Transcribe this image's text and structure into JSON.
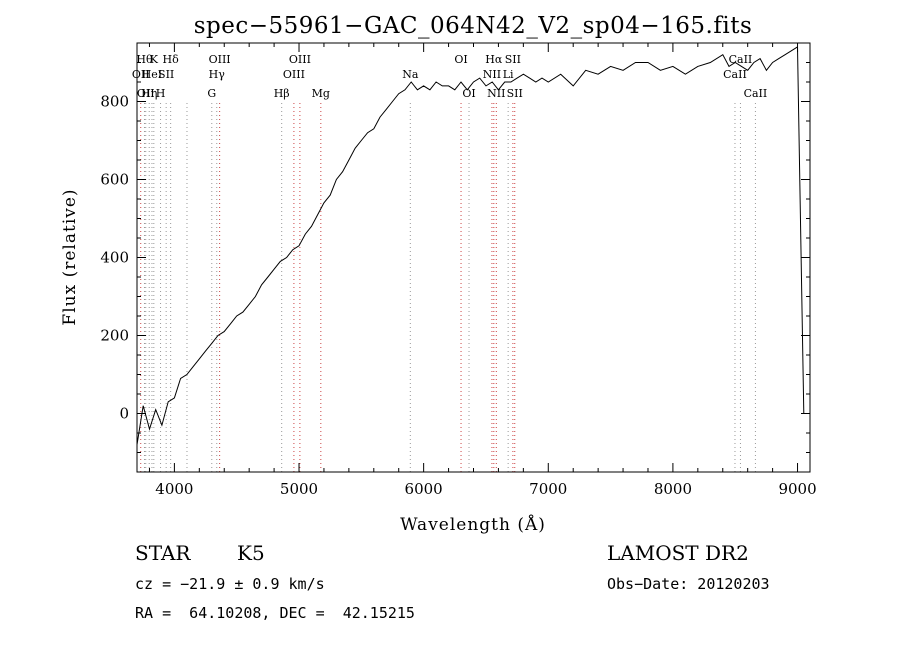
{
  "chart_data": {
    "type": "line",
    "title": "spec−55961−GAC_064N42_V2_sp04−165.fits",
    "xlabel": "Wavelength (Å)",
    "ylabel": "Flux (relative)",
    "xlim": [
      3700,
      9100
    ],
    "ylim": [
      -150,
      950
    ],
    "xticks": [
      4000,
      5000,
      6000,
      7000,
      8000,
      9000
    ],
    "yticks": [
      0,
      200,
      400,
      600,
      800
    ],
    "series": [
      {
        "name": "",
        "x": [
          3700,
          3750,
          3800,
          3850,
          3900,
          3950,
          4000,
          4050,
          4100,
          4150,
          4200,
          4250,
          4300,
          4350,
          4400,
          4450,
          4500,
          4550,
          4600,
          4650,
          4700,
          4750,
          4800,
          4850,
          4900,
          4950,
          5000,
          5050,
          5100,
          5150,
          5200,
          5250,
          5300,
          5350,
          5400,
          5450,
          5500,
          5550,
          5600,
          5650,
          5700,
          5750,
          5800,
          5850,
          5900,
          5950,
          6000,
          6050,
          6100,
          6150,
          6200,
          6250,
          6300,
          6350,
          6400,
          6450,
          6500,
          6550,
          6600,
          6650,
          6700,
          6750,
          6800,
          6850,
          6900,
          6950,
          7000,
          7100,
          7200,
          7300,
          7400,
          7500,
          7600,
          7700,
          7800,
          7900,
          8000,
          8100,
          8200,
          8300,
          8400,
          8450,
          8500,
          8550,
          8600,
          8650,
          8700,
          8750,
          8800,
          8850,
          8900,
          8950,
          9000,
          9050
        ],
        "y": [
          -80,
          20,
          -40,
          10,
          -30,
          30,
          40,
          90,
          100,
          120,
          140,
          160,
          180,
          200,
          210,
          230,
          250,
          260,
          280,
          300,
          330,
          350,
          370,
          390,
          400,
          420,
          430,
          460,
          480,
          510,
          540,
          560,
          600,
          620,
          650,
          680,
          700,
          720,
          730,
          760,
          780,
          800,
          820,
          830,
          850,
          830,
          840,
          830,
          850,
          840,
          840,
          830,
          850,
          830,
          850,
          860,
          840,
          850,
          830,
          850,
          850,
          860,
          870,
          860,
          850,
          860,
          850,
          870,
          840,
          880,
          870,
          890,
          880,
          900,
          900,
          880,
          890,
          870,
          890,
          900,
          920,
          890,
          900,
          890,
          880,
          900,
          910,
          880,
          900,
          910,
          920,
          930,
          940,
          0
        ],
        "color": "#000000"
      }
    ],
    "line_marks": [
      {
        "x": 3730,
        "label": "OII",
        "row": 2,
        "color": "#cc4444"
      },
      {
        "x": 3760,
        "label": "Hθ",
        "row": 1,
        "color": "#999999"
      },
      {
        "x": 3770,
        "label": "OII",
        "row": 3,
        "color": "#999999"
      },
      {
        "x": 3798,
        "label": "Hη",
        "row": 3,
        "color": "#999999"
      },
      {
        "x": 3820,
        "label": "HeI",
        "row": 2,
        "color": "#999999"
      },
      {
        "x": 3835,
        "label": "K",
        "row": 1,
        "color": "#999999"
      },
      {
        "x": 3889,
        "label": "H",
        "row": 3,
        "color": "#999999"
      },
      {
        "x": 3934,
        "label": "SII",
        "row": 2,
        "color": "#999999"
      },
      {
        "x": 3970,
        "label": "Hδ",
        "row": 1,
        "color": "#999999"
      },
      {
        "x": 4101,
        "label": "",
        "row": 0,
        "color": "#999999"
      },
      {
        "x": 4300,
        "label": "G",
        "row": 3,
        "color": "#999999"
      },
      {
        "x": 4340,
        "label": "Hγ",
        "row": 2,
        "color": "#999999"
      },
      {
        "x": 4363,
        "label": "OIII",
        "row": 1,
        "color": "#cc4444"
      },
      {
        "x": 4861,
        "label": "Hβ",
        "row": 3,
        "color": "#999999"
      },
      {
        "x": 4959,
        "label": "OIII",
        "row": 2,
        "color": "#cc4444"
      },
      {
        "x": 5007,
        "label": "OIII",
        "row": 1,
        "color": "#cc4444"
      },
      {
        "x": 5175,
        "label": "Mg",
        "row": 3,
        "color": "#cc4444"
      },
      {
        "x": 5893,
        "label": "Na",
        "row": 2,
        "color": "#999999"
      },
      {
        "x": 6300,
        "label": "OI",
        "row": 1,
        "color": "#cc4444"
      },
      {
        "x": 6364,
        "label": "OI",
        "row": 3,
        "color": "#999999"
      },
      {
        "x": 6548,
        "label": "NII",
        "row": 2,
        "color": "#cc4444"
      },
      {
        "x": 6563,
        "label": "Hα",
        "row": 1,
        "color": "#cc4444"
      },
      {
        "x": 6583,
        "label": "NII",
        "row": 3,
        "color": "#cc4444"
      },
      {
        "x": 6678,
        "label": "Li",
        "row": 2,
        "color": "#999999"
      },
      {
        "x": 6716,
        "label": "SII",
        "row": 1,
        "color": "#cc4444"
      },
      {
        "x": 6731,
        "label": "SII",
        "row": 3,
        "color": "#cc4444"
      },
      {
        "x": 8498,
        "label": "CaII",
        "row": 2,
        "color": "#999999"
      },
      {
        "x": 8542,
        "label": "CaII",
        "row": 1,
        "color": "#999999"
      },
      {
        "x": 8662,
        "label": "CaII",
        "row": 3,
        "color": "#999999"
      }
    ]
  },
  "info": {
    "class_label": "STAR",
    "subclass_label": "K5",
    "survey_label": "LAMOST DR2",
    "cz_text": "cz = −21.9 ± 0.9 km/s",
    "obs_date_text": "Obs−Date: 20120203",
    "coords_text": "RA =  64.10208, DEC =  42.15215"
  }
}
